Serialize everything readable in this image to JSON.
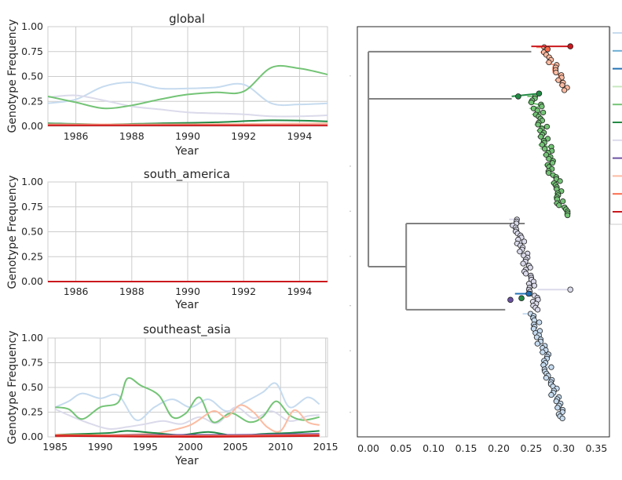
{
  "colors": {
    "blue_light": "#c6dbef",
    "blue_mid": "#6baed6",
    "blue_dark": "#2171b5",
    "green_light": "#c7e9c0",
    "green_mid": "#74c476",
    "green_dark": "#238b45",
    "purple_light": "#dadaeb",
    "purple_dark": "#6a51a3",
    "orange_light": "#fcbba1",
    "red_mid": "#fb6a4a",
    "red_dark": "#cb181d",
    "tree_gray": "#808080"
  },
  "chart_data": [
    {
      "type": "line",
      "title": "global",
      "xlabel": "Year",
      "ylabel": "Genotype Frequency",
      "xlim": [
        1985,
        1995
      ],
      "ylim": [
        0,
        1
      ],
      "xticks": [
        "1986",
        "1988",
        "1990",
        "1992",
        "1994"
      ],
      "yticks": [
        "0.00",
        "0.25",
        "0.50",
        "0.75",
        "1.00"
      ],
      "grid": true,
      "series": [
        {
          "color": "#c6dbef",
          "x": [
            1985,
            1986,
            1987,
            1988,
            1989,
            1990,
            1991,
            1992,
            1993,
            1994,
            1995
          ],
          "y": [
            0.23,
            0.27,
            0.4,
            0.44,
            0.38,
            0.38,
            0.39,
            0.42,
            0.23,
            0.22,
            0.23
          ]
        },
        {
          "color": "#dadaeb",
          "x": [
            1985,
            1986,
            1987,
            1988,
            1989,
            1990,
            1991,
            1992,
            1993,
            1994,
            1995
          ],
          "y": [
            0.29,
            0.31,
            0.26,
            0.2,
            0.17,
            0.14,
            0.13,
            0.12,
            0.1,
            0.1,
            0.11
          ]
        },
        {
          "color": "#74c476",
          "x": [
            1985,
            1986,
            1987,
            1988,
            1989,
            1990,
            1991,
            1992,
            1993,
            1994,
            1995
          ],
          "y": [
            0.3,
            0.24,
            0.18,
            0.21,
            0.27,
            0.32,
            0.34,
            0.35,
            0.59,
            0.58,
            0.52
          ]
        },
        {
          "color": "#238b45",
          "x": [
            1985,
            1987,
            1989,
            1991,
            1993,
            1995
          ],
          "y": [
            0.03,
            0.02,
            0.03,
            0.04,
            0.06,
            0.05
          ]
        },
        {
          "color": "#fcbba1",
          "x": [
            1985,
            1990,
            1995
          ],
          "y": [
            0.02,
            0.02,
            0.03
          ]
        },
        {
          "color": "#fb6a4a",
          "x": [
            1985,
            1990,
            1995
          ],
          "y": [
            0.01,
            0.01,
            0.01
          ]
        },
        {
          "color": "#cb181d",
          "x": [
            1985,
            1990,
            1995
          ],
          "y": [
            0.01,
            0.01,
            0.01
          ]
        }
      ]
    },
    {
      "type": "line",
      "title": "south_america",
      "xlabel": "Year",
      "ylabel": "Genotype Frequency",
      "xlim": [
        1985,
        1995
      ],
      "ylim": [
        0,
        1
      ],
      "xticks": [
        "1986",
        "1988",
        "1990",
        "1992",
        "1994"
      ],
      "yticks": [
        "0.00",
        "0.25",
        "0.50",
        "0.75",
        "1.00"
      ],
      "grid": true,
      "series": [
        {
          "color": "#cb181d",
          "x": [
            1985,
            1995
          ],
          "y": [
            0.0,
            0.0
          ]
        }
      ]
    },
    {
      "type": "line",
      "title": "southeast_asia",
      "xlabel": "Year",
      "ylabel": "Genotype Frequency",
      "xlim": [
        1984.2,
        2015.2
      ],
      "ylim": [
        0,
        1
      ],
      "xticks": [
        "1985",
        "1990",
        "1995",
        "2000",
        "2005",
        "2010",
        "2015"
      ],
      "yticks": [
        "0.00",
        "0.25",
        "0.50",
        "0.75",
        "1.00"
      ],
      "grid": true,
      "series": [
        {
          "color": "#c6dbef",
          "x": [
            1985,
            1986.5,
            1988,
            1990,
            1992,
            1994,
            1996,
            1998,
            2000,
            2002,
            2004,
            2006,
            2008,
            2009.5,
            2011,
            2013,
            2014.3
          ],
          "y": [
            0.3,
            0.36,
            0.44,
            0.39,
            0.42,
            0.17,
            0.3,
            0.38,
            0.3,
            0.38,
            0.26,
            0.35,
            0.45,
            0.54,
            0.3,
            0.4,
            0.33
          ]
        },
        {
          "color": "#dadaeb",
          "x": [
            1985,
            1987,
            1989,
            1991,
            1993,
            1995,
            1997,
            1999,
            2001,
            2003,
            2005,
            2007,
            2009,
            2011,
            2013,
            2014.3
          ],
          "y": [
            0.28,
            0.2,
            0.13,
            0.08,
            0.1,
            0.13,
            0.16,
            0.13,
            0.2,
            0.14,
            0.3,
            0.19,
            0.26,
            0.16,
            0.21,
            0.22
          ]
        },
        {
          "color": "#74c476",
          "x": [
            1985,
            1986.5,
            1988,
            1990,
            1992,
            1993,
            1994.5,
            1996.5,
            1998,
            1999.5,
            2001,
            2002.5,
            2004.5,
            2006.5,
            2008,
            2009.5,
            2011,
            2012.5,
            2014.3
          ],
          "y": [
            0.3,
            0.28,
            0.18,
            0.3,
            0.35,
            0.59,
            0.52,
            0.42,
            0.2,
            0.24,
            0.4,
            0.15,
            0.24,
            0.15,
            0.2,
            0.36,
            0.22,
            0.17,
            0.2
          ]
        },
        {
          "color": "#fcbba1",
          "x": [
            1985,
            1995,
            1997,
            2000,
            2002.5,
            2004,
            2005.5,
            2007,
            2008.5,
            2010,
            2011.5,
            2013,
            2014.3
          ],
          "y": [
            0.0,
            0.03,
            0.05,
            0.12,
            0.26,
            0.2,
            0.32,
            0.25,
            0.1,
            0.06,
            0.27,
            0.15,
            0.12
          ]
        },
        {
          "color": "#238b45",
          "x": [
            1985,
            1988,
            1991,
            1993,
            1996,
            1999,
            2002,
            2005,
            2008,
            2011,
            2014.3
          ],
          "y": [
            0.02,
            0.03,
            0.04,
            0.06,
            0.04,
            0.02,
            0.05,
            0.01,
            0.03,
            0.04,
            0.06
          ]
        },
        {
          "color": "#6a51a3",
          "x": [
            1985,
            1995,
            2005,
            2014.3
          ],
          "y": [
            0.01,
            0.02,
            0.02,
            0.03
          ]
        },
        {
          "color": "#fb6a4a",
          "x": [
            1985,
            2000,
            2014.3
          ],
          "y": [
            0.02,
            0.01,
            0.02
          ]
        },
        {
          "color": "#cb181d",
          "x": [
            1985,
            2000,
            2014.3
          ],
          "y": [
            0.01,
            0.0,
            0.01
          ]
        }
      ]
    },
    {
      "type": "tree",
      "xlim": [
        -0.017,
        0.37
      ],
      "xticks": [
        "0.00",
        "0.05",
        "0.10",
        "0.15",
        "0.20",
        "0.25",
        "0.30",
        "0.35"
      ],
      "backbone": [
        {
          "from": [
            0.0,
            0.061
          ],
          "to": [
            0.0,
            0.585
          ]
        },
        {
          "from": [
            0.0,
            0.061
          ],
          "to": [
            0.25,
            0.061
          ]
        },
        {
          "from": [
            0.0,
            0.176
          ],
          "to": [
            0.22,
            0.176
          ]
        },
        {
          "from": [
            0.0,
            0.585
          ],
          "to": [
            0.058,
            0.585
          ]
        },
        {
          "from": [
            0.058,
            0.48
          ],
          "to": [
            0.058,
            0.69
          ]
        },
        {
          "from": [
            0.058,
            0.48
          ],
          "to": [
            0.24,
            0.48
          ]
        },
        {
          "from": [
            0.058,
            0.69
          ],
          "to": [
            0.21,
            0.69
          ]
        }
      ],
      "clades": [
        {
          "name": "red",
          "color": "#fc9272",
          "tip_color": "#fcbba1",
          "y_start": 0.05,
          "y_end": 0.155,
          "x_min": 0.27,
          "x_max": 0.305,
          "n": 18
        },
        {
          "name": "green",
          "color": "#74c476",
          "tip_color": "#74c476",
          "y_start": 0.17,
          "y_end": 0.46,
          "x_min": 0.255,
          "x_max": 0.3,
          "n": 60
        },
        {
          "name": "purple",
          "color": "#dadaeb",
          "tip_color": "#dadaeb",
          "y_start": 0.47,
          "y_end": 0.69,
          "x_min": 0.225,
          "x_max": 0.26,
          "n": 46
        },
        {
          "name": "blue",
          "color": "#c6dbef",
          "tip_color": "#c6dbef",
          "y_start": 0.7,
          "y_end": 0.955,
          "x_min": 0.255,
          "x_max": 0.295,
          "n": 50
        }
      ],
      "highlight_tips": [
        {
          "x": 0.31,
          "y": 0.048,
          "color": "#cb181d"
        },
        {
          "x": 0.275,
          "y": 0.055,
          "color": "#fb6a4a"
        },
        {
          "x": 0.23,
          "y": 0.17,
          "color": "#238b45"
        },
        {
          "x": 0.262,
          "y": 0.163,
          "color": "#238b45"
        },
        {
          "x": 0.31,
          "y": 0.641,
          "color": "#dadaeb"
        },
        {
          "x": 0.246,
          "y": 0.651,
          "color": "#2171b5"
        },
        {
          "x": 0.235,
          "y": 0.662,
          "color": "#238b45"
        },
        {
          "x": 0.218,
          "y": 0.666,
          "color": "#6a51a3"
        }
      ],
      "legend": [
        {
          "color": "#c6dbef"
        },
        {
          "color": "#6baed6"
        },
        {
          "color": "#2171b5"
        },
        {
          "color": "#c7e9c0"
        },
        {
          "color": "#74c476"
        },
        {
          "color": "#238b45"
        },
        {
          "color": "#dadaeb"
        },
        {
          "color": "#6a51a3"
        },
        {
          "color": "#fcbba1"
        },
        {
          "color": "#fb6a4a"
        },
        {
          "color": "#cb181d"
        }
      ]
    }
  ]
}
